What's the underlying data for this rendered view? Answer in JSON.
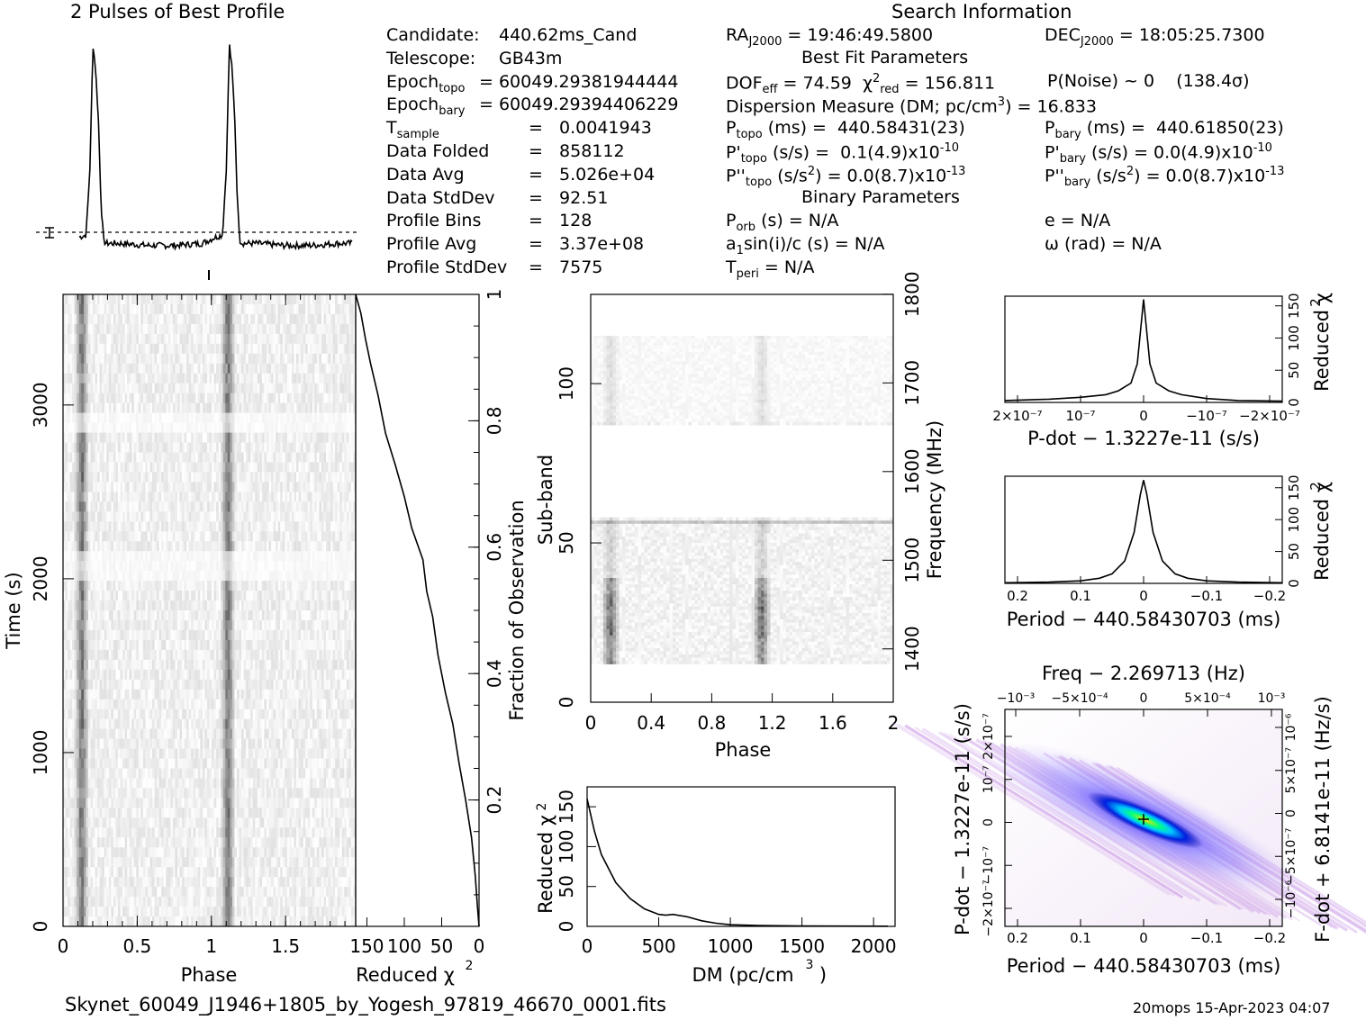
{
  "page": {
    "profile_title": "2 Pulses of Best Profile",
    "search_title": "Search Information",
    "filename": "Skynet_60049_J1946+1805_by_Yogesh_97819_46670_0001.fits",
    "stamp": "20mops 15-Apr-2023 04:07"
  },
  "info": {
    "left": [
      {
        "label": "Candidate:",
        "value": "440.62ms_Cand"
      },
      {
        "label": "Telescope:",
        "value": "GB43m"
      },
      {
        "label": "Epoch",
        "sub": "topo",
        "value": "= 60049.29381944444"
      },
      {
        "label": "Epoch",
        "sub": "bary",
        "value": "= 60049.29394406229"
      },
      {
        "label": "T",
        "sub": "sample",
        "value": "=   0.0041943"
      },
      {
        "label": "Data Folded",
        "value": "=   858112"
      },
      {
        "label": "Data Avg",
        "value": "=   5.026e+04"
      },
      {
        "label": "Data StdDev",
        "value": "=   92.51"
      },
      {
        "label": "Profile Bins",
        "value": "=   128"
      },
      {
        "label": "Profile Avg",
        "value": "=   3.37e+08"
      },
      {
        "label": "Profile StdDev",
        "value": "=   7575"
      }
    ],
    "ra_label": "RA",
    "ra_sub": "J2000",
    "ra_value": "= 19:46:49.5800",
    "dec_label": "DEC",
    "dec_sub": "J2000",
    "dec_value": "= 18:05:25.7300",
    "best_fit_title": "Best Fit Parameters",
    "dof_label": "DOF",
    "dof_sub": "eff",
    "dof_value": "= 74.59",
    "chi_label": "χ",
    "chi_sup": "2",
    "chi_sub": "red",
    "chi_value": "= 156.811",
    "pnoise": "P(Noise) ~ 0    (138.4σ)",
    "dm_text": "Dispersion Measure (DM; pc/cm",
    "dm_sup": "3",
    "dm_value": ") = 16.833",
    "ptopo_label": "P",
    "ptopo_sub": "topo",
    "ptopo_value": "(ms) =  440.58431(23)",
    "pbary_label": "P",
    "pbary_sub": "bary",
    "pbary_value": "(ms) =  440.61850(23)",
    "pdtopo_label": "P'",
    "pdtopo_sub": "topo",
    "pdtopo_value": "(s/s) =  0.1(4.9)x10",
    "pdtopo_exp": "-10",
    "pdbary_label": "P'",
    "pdbary_sub": "bary",
    "pdbary_value": "(s/s) = 0.0(4.9)x10",
    "pdbary_exp": "-10",
    "pddtopo_label": "P''",
    "pddtopo_sub": "topo",
    "pddtopo_value": "(s/s",
    "pddtopo_sup": "2",
    "pddtopo_rest": ") = 0.0(8.7)x10",
    "pddtopo_exp": "-13",
    "pddbary_label": "P''",
    "pddbary_sub": "bary",
    "pddbary_value": "(s/s",
    "pddbary_sup": "2",
    "pddbary_rest": ") = 0.0(8.7)x10",
    "pddbary_exp": "-13",
    "binary_title": "Binary Parameters",
    "porb_label": "P",
    "porb_sub": "orb",
    "porb_value": "(s) = N/A",
    "ecc": "e = N/A",
    "a1_text": "a",
    "a1_sub": "1",
    "a1_value": "sin(i)/c (s) = N/A",
    "omega": "ω (rad) = N/A",
    "tperi_label": "T",
    "tperi_sub": "peri",
    "tperi_value": "= N/A"
  },
  "chart_data": [
    {
      "type": "line",
      "name": "profile",
      "title": "2 Pulses of Best Profile",
      "x": [
        0,
        0.05,
        0.08,
        0.1,
        0.12,
        0.14,
        0.16,
        0.18,
        0.2,
        0.3,
        0.5,
        0.7,
        0.9,
        1.0,
        1.05,
        1.08,
        1.1,
        1.12,
        1.14,
        1.16,
        1.18,
        1.2,
        1.3,
        1.5,
        1.7,
        1.9,
        2.0
      ],
      "y": [
        0.05,
        0.06,
        0.4,
        0.97,
        0.85,
        0.62,
        0.2,
        0.03,
        0.02,
        0.02,
        0.01,
        0.01,
        0.02,
        0.05,
        0.06,
        0.4,
        0.97,
        0.85,
        0.62,
        0.2,
        0.03,
        0.02,
        0.02,
        0.01,
        0.01,
        0.02,
        0.02
      ],
      "xlim": [
        0,
        2
      ]
    },
    {
      "type": "heatmap",
      "name": "time-phase",
      "xlabel": "Phase",
      "ylabel": "Time (s)",
      "xlim": [
        0,
        2
      ],
      "ylim": [
        0,
        3600
      ],
      "x_ticks": [
        "0",
        "0.5",
        "1",
        "1.5"
      ],
      "y_ticks": [
        "0",
        "1000",
        "2000",
        "3000"
      ],
      "pulse_phases": [
        0.12,
        1.12
      ]
    },
    {
      "type": "line",
      "name": "time-chi2",
      "xlabel": "Reduced χ",
      "xlabel_sup": "2",
      "ylabel": "Fraction of Observation",
      "x_ticks": [
        "150",
        "100",
        "50",
        "0"
      ],
      "y_ticks": [
        "0.2",
        "0.4",
        "0.6",
        "0.8",
        "1"
      ],
      "x": [
        0,
        2,
        5,
        10,
        18,
        27,
        35,
        45,
        55,
        62,
        70,
        75,
        90,
        100,
        112,
        125,
        135,
        145,
        152,
        158,
        165
      ],
      "y": [
        0,
        0.03,
        0.08,
        0.14,
        0.2,
        0.26,
        0.32,
        0.37,
        0.43,
        0.49,
        0.53,
        0.58,
        0.63,
        0.68,
        0.73,
        0.78,
        0.84,
        0.89,
        0.93,
        0.97,
        1.0
      ],
      "xlim": [
        165,
        0
      ],
      "ylim": [
        0,
        1
      ]
    },
    {
      "type": "heatmap",
      "name": "subband-phase",
      "xlabel": "Phase",
      "ylabel": "Sub-band",
      "ylabel2": "Frequency (MHz)",
      "xlim": [
        0,
        2
      ],
      "ylim": [
        0,
        128
      ],
      "x_ticks": [
        "0",
        "0.4",
        "0.8",
        "1.2",
        "1.6",
        "2"
      ],
      "y_ticks": [
        "0",
        "50",
        "100"
      ],
      "y2_ticks": [
        "1400",
        "1500",
        "1600",
        "1700",
        "1800"
      ]
    },
    {
      "type": "line",
      "name": "dm-chi2",
      "xlabel": "DM (pc/cm",
      "xlabel_sup": "3",
      "xlabel_end": ")",
      "ylabel": "Reduced χ",
      "ylabel_sup": "2",
      "x_ticks": [
        "0",
        "500",
        "1000",
        "1500",
        "2000"
      ],
      "y_ticks": [
        "0",
        "50",
        "100",
        "150"
      ],
      "x": [
        0,
        50,
        100,
        200,
        300,
        400,
        500,
        550,
        600,
        700,
        800,
        900,
        1000,
        1200,
        1500,
        1800,
        2100
      ],
      "y": [
        160,
        120,
        90,
        55,
        35,
        22,
        15,
        14,
        15,
        12,
        7,
        4,
        2,
        1,
        0.5,
        0.3,
        0.2
      ],
      "xlim": [
        0,
        2150
      ],
      "ylim": [
        0,
        175
      ]
    },
    {
      "type": "line",
      "name": "pdot-chi2",
      "xlabel": "P-dot − 1.3227e-11 (s/s)",
      "ylabel": "Reduced χ",
      "ylabel_sup": "2",
      "x_ticks": [
        "2×10⁻⁷",
        "10⁻⁷",
        "0",
        "−10⁻⁷",
        "−2×10⁻⁷"
      ],
      "y_ticks": [
        "0",
        "50",
        "100",
        "150"
      ],
      "x": [
        2.2,
        1.5,
        1.0,
        0.6,
        0.4,
        0.2,
        0.1,
        0.05,
        0,
        -0.05,
        -0.1,
        -0.2,
        -0.4,
        -0.6,
        -1.0,
        -1.5,
        -2.2
      ],
      "y": [
        3,
        5,
        8,
        12,
        18,
        30,
        60,
        110,
        160,
        110,
        60,
        30,
        18,
        12,
        6,
        3,
        2
      ],
      "xlim": [
        2.2,
        -2.2
      ],
      "ylim": [
        0,
        165
      ]
    },
    {
      "type": "line",
      "name": "period-chi2",
      "xlabel": "Period − 440.58430703 (ms)",
      "ylabel": "Reduced χ",
      "ylabel_sup": "2",
      "x_ticks": [
        "0.2",
        "0.1",
        "0",
        "−0.1",
        "−0.2"
      ],
      "y_ticks": [
        "0",
        "50",
        "100",
        "150"
      ],
      "x": [
        0.22,
        0.15,
        0.1,
        0.07,
        0.05,
        0.03,
        0.015,
        0.005,
        0,
        -0.005,
        -0.015,
        -0.03,
        -0.05,
        -0.07,
        -0.1,
        -0.15,
        -0.22
      ],
      "y": [
        1,
        2,
        4,
        8,
        15,
        35,
        80,
        140,
        162,
        140,
        80,
        35,
        15,
        8,
        4,
        2,
        1
      ],
      "xlim": [
        0.22,
        -0.22
      ],
      "ylim": [
        0,
        168
      ]
    },
    {
      "type": "heatmap",
      "name": "period-pdot",
      "title": "Freq − 2.269713 (Hz)",
      "xlabel": "Period − 440.58430703 (ms)",
      "ylabel": "P-dot − 1.3227e-11 (s/s)",
      "ylabel2": "F-dot + 6.8141e-11 (Hz/s)",
      "x_ticks": [
        "0.2",
        "0.1",
        "0",
        "−0.1",
        "−0.2"
      ],
      "x2_ticks": [
        "−10⁻³",
        "−5×10⁻⁴",
        "0",
        "5×10⁻⁴",
        "10⁻³"
      ],
      "y_ticks": [
        "2×10⁻⁷",
        "10⁻⁷",
        "0",
        "−10⁻⁷",
        "−2×10⁻⁷"
      ],
      "y2_ticks": [
        "−10⁻⁶",
        "−5×10⁻⁷",
        "0",
        "5×10⁻⁷",
        "10⁻⁶"
      ]
    }
  ]
}
